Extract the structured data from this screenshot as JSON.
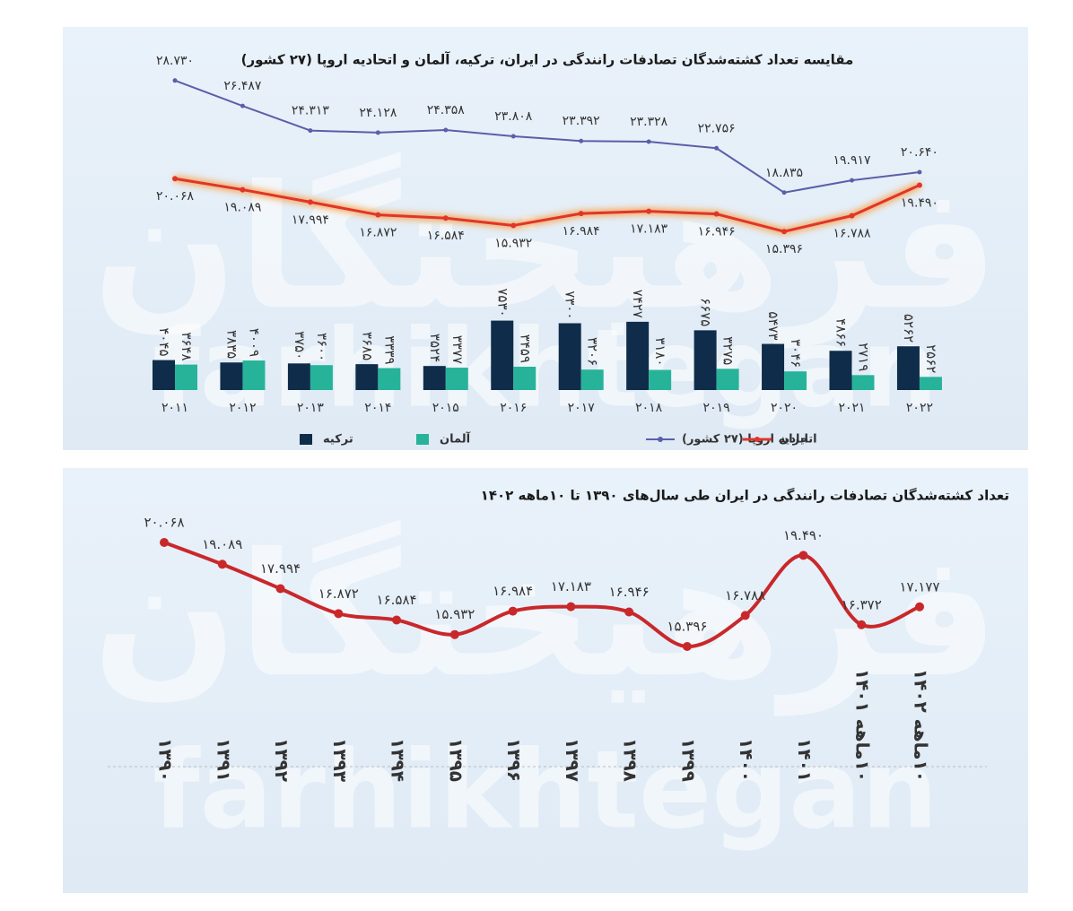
{
  "watermark": {
    "fa": "فرهیختگان",
    "en": "farhikhtegan"
  },
  "chart_data": [
    {
      "type": "bar",
      "title": "مقایسه تعداد کشته‌شدگان تصادفات رانندگی در ایران، ترکیه، آلمان و اتحادیه اروپا (۲۷ کشور)",
      "categories": [
        "۲۰۱۱",
        "۲۰۱۲",
        "۲۰۱۳",
        "۲۰۱۴",
        "۲۰۱۵",
        "۲۰۱۶",
        "۲۰۱۷",
        "۲۰۱۸",
        "۲۰۱۹",
        "۲۰۲۰",
        "۲۰۲۱",
        "۲۰۲۲"
      ],
      "ylim": [
        1400,
        32000
      ],
      "legend": "bottom",
      "series": [
        {
          "name": "ترکیه",
          "type": "bar",
          "color": "#0f2d4a",
          "values": [
            4045,
            3835,
            3750,
            3685,
            3524,
            7530,
            7300,
            7427,
            6675,
            5473,
            4866,
            5262
          ],
          "value_labels": [
            "۴۰۴۵",
            "۳۸۳۵",
            "۳۷۵۰",
            "۳۶۸۵",
            "۳۵۲۴",
            "۷۵۳۰",
            "۷۳۰۰",
            "۷۴۲۷",
            "۶۶۷۵",
            "۵۴۷۳",
            "۴۸۶۶",
            "۵۲۶۲"
          ]
        },
        {
          "name": "آلمان",
          "type": "bar",
          "color": "#27b39a",
          "values": [
            3648,
            4009,
            3600,
            3339,
            3377,
            3459,
            3206,
            3180,
            3275,
            3046,
            2719,
            2562
          ],
          "value_labels": [
            "۳۶۴۸",
            "۴۰۰۹",
            "۳۶۰۰",
            "۳۳۳۹",
            "۳۳۷۷",
            "۳۴۵۹",
            "۳۲۰۶",
            "۳۱۸۰",
            "۳۲۷۵",
            "۳۰۴۶",
            "۲۷۱۹",
            "۲۵۶۲"
          ]
        },
        {
          "name": "اتحادیه اروپا (۲۷ کشور)",
          "type": "line",
          "color": "#5a5fa8",
          "label_position": "above",
          "values": [
            28730,
            26487,
            24313,
            24128,
            24358,
            23808,
            23392,
            23328,
            22756,
            18835,
            19917,
            20640
          ],
          "value_labels": [
            "۲۸.۷۳۰",
            "۲۶.۴۸۷",
            "۲۴.۳۱۳",
            "۲۴.۱۲۸",
            "۲۴.۳۵۸",
            "۲۳.۸۰۸",
            "۲۳.۳۹۲",
            "۲۳.۳۲۸",
            "۲۲.۷۵۶",
            "۱۸.۸۳۵",
            "۱۹.۹۱۷",
            "۲۰.۶۴۰"
          ]
        },
        {
          "name": "ایران",
          "type": "line",
          "color": "#e0352b",
          "label_position": "below",
          "glow": true,
          "values": [
            20068,
            19089,
            17994,
            16872,
            16584,
            15932,
            16984,
            17183,
            16946,
            15396,
            16788,
            19490
          ],
          "value_labels": [
            "۲۰.۰۶۸",
            "۱۹.۰۸۹",
            "۱۷.۹۹۴",
            "۱۶.۸۷۲",
            "۱۶.۵۸۴",
            "۱۵.۹۳۲",
            "۱۶.۹۸۴",
            "۱۷.۱۸۳",
            "۱۶.۹۴۶",
            "۱۵.۳۹۶",
            "۱۶.۷۸۸",
            "۱۹.۴۹۰"
          ]
        }
      ]
    },
    {
      "type": "line",
      "title": "تعداد کشته‌شدگان تصادفات رانندگی در ایران طی سال‌های ۱۳۹۰ تا ۱۰ماهه ۱۴۰۲",
      "categories": [
        "۱۳۹۰",
        "۱۳۹۱",
        "۱۳۹۲",
        "۱۳۹۳",
        "۱۳۹۴",
        "۱۳۹۵",
        "۱۳۹۶",
        "۱۳۹۷",
        "۱۳۹۸",
        "۱۳۹۹",
        "۱۴۰۰",
        "۱۴۰۱",
        "۱۰ماهه ۱۴۰۱",
        "۱۰ماهه ۱۴۰۲"
      ],
      "ylim": [
        10000,
        22000
      ],
      "smooth": true,
      "color": "#c9282b",
      "values": [
        20068,
        19089,
        17994,
        16872,
        16584,
        15932,
        16984,
        17183,
        16946,
        15396,
        16788,
        19490,
        16372,
        17177
      ],
      "value_labels": [
        "۲۰.۰۶۸",
        "۱۹.۰۸۹",
        "۱۷.۹۹۴",
        "۱۶.۸۷۲",
        "۱۶.۵۸۴",
        "۱۵.۹۳۲",
        "۱۶.۹۸۴",
        "۱۷.۱۸۳",
        "۱۶.۹۴۶",
        "۱۵.۳۹۶",
        "۱۶.۷۸۸",
        "۱۹.۴۹۰",
        "۱۶.۳۷۲",
        "۱۷.۱۷۷"
      ]
    }
  ]
}
